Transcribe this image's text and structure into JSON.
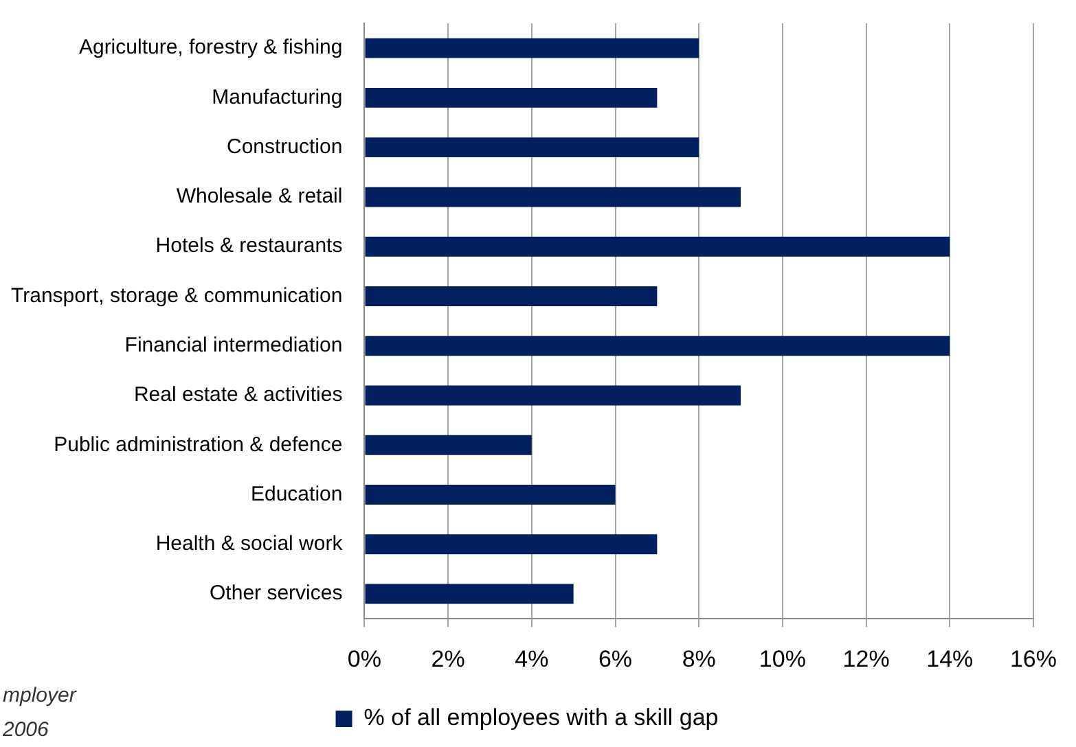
{
  "chart_data": {
    "type": "bar",
    "orientation": "horizontal",
    "categories": [
      "Agriculture, forestry & fishing",
      "Manufacturing",
      "Construction",
      "Wholesale & retail",
      "Hotels & restaurants",
      "Transport, storage & communication",
      "Financial intermediation",
      "Real estate & activities",
      "Public administration & defence",
      "Education",
      "Health & social work",
      "Other services"
    ],
    "series": [
      {
        "name": "% of all employees with a skill gap",
        "color": "#002060",
        "values": [
          8,
          7,
          8,
          9,
          14,
          7,
          14,
          9,
          4,
          6,
          7,
          5
        ]
      }
    ],
    "xlim": [
      0,
      16
    ],
    "xticks": [
      {
        "value": 0,
        "label": "0%"
      },
      {
        "value": 2,
        "label": "2%"
      },
      {
        "value": 4,
        "label": "4%"
      },
      {
        "value": 6,
        "label": "6%"
      },
      {
        "value": 8,
        "label": "8%"
      },
      {
        "value": 10,
        "label": "10%"
      },
      {
        "value": 12,
        "label": "12%"
      },
      {
        "value": 14,
        "label": "14%"
      },
      {
        "value": 16,
        "label": "16%"
      }
    ],
    "grid": "x",
    "legend": "bottom",
    "annotations": [
      "mployer",
      "2006"
    ]
  }
}
